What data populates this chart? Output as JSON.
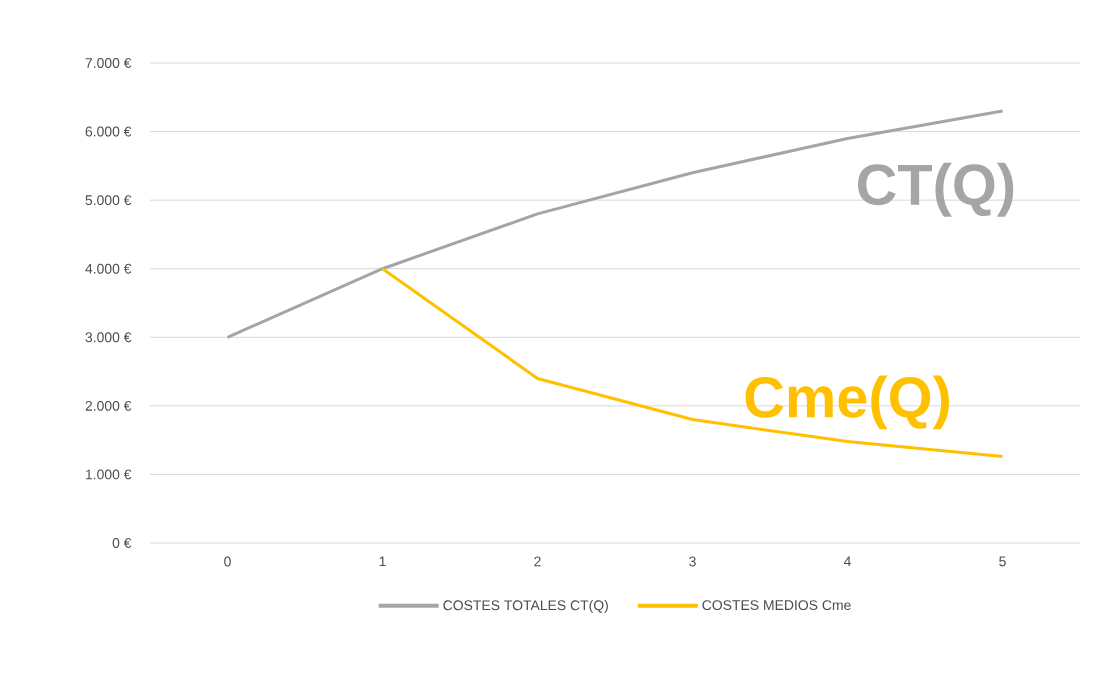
{
  "chart_data": {
    "type": "line",
    "x": [
      0,
      1,
      2,
      3,
      4,
      5
    ],
    "xlim": [
      -0.5,
      5.5
    ],
    "xticks": [
      0,
      1,
      2,
      3,
      4,
      5
    ],
    "ylim": [
      0,
      7000
    ],
    "yticks": [
      {
        "value": 0,
        "label": "0 €"
      },
      {
        "value": 1000,
        "label": "1.000 €"
      },
      {
        "value": 2000,
        "label": "2.000 €"
      },
      {
        "value": 3000,
        "label": "3.000 €"
      },
      {
        "value": 4000,
        "label": "4.000 €"
      },
      {
        "value": 5000,
        "label": "5.000 €"
      },
      {
        "value": 6000,
        "label": "6.000 €"
      },
      {
        "value": 7000,
        "label": "7.000 €"
      }
    ],
    "series": [
      {
        "name": "COSTES TOTALES CT(Q)",
        "color": "#a5a5a5",
        "values": [
          3000,
          4000,
          4800,
          5400,
          5900,
          6300
        ]
      },
      {
        "name": "COSTES MEDIOS Cme",
        "color": "#ffc000",
        "values": [
          null,
          4000,
          2400,
          1800,
          1480,
          1260
        ]
      }
    ],
    "annotations": [
      "CT(Q)",
      "Cme(Q)"
    ],
    "grid": "y",
    "legend": "bottom",
    "marker": "none",
    "line_style": "solid"
  }
}
